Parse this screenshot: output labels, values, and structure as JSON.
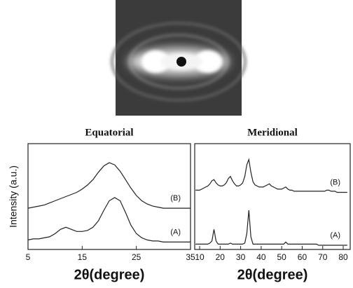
{
  "chart_data": [
    {
      "type": "line",
      "title": "Equatorial",
      "xlabel": "2θ(degree)",
      "ylabel": "Intensity (a.u.)",
      "xlim": [
        5,
        35
      ],
      "xticks": [
        5,
        15,
        25,
        35
      ],
      "ylim": [
        0,
        10
      ],
      "color": "#222",
      "x": [
        5,
        6,
        7,
        8,
        9,
        10,
        11,
        12,
        13,
        14,
        15,
        16,
        17,
        18,
        19,
        20,
        21,
        22,
        23,
        24,
        25,
        26,
        27,
        28,
        29,
        30,
        31,
        32,
        33,
        34,
        35
      ],
      "series": [
        {
          "name": "(B)",
          "values": [
            3.9,
            4.0,
            4.1,
            4.2,
            4.4,
            4.6,
            4.8,
            5.0,
            5.2,
            5.4,
            5.7,
            6.1,
            6.6,
            7.3,
            7.9,
            8.2,
            8.0,
            7.4,
            6.6,
            5.8,
            5.1,
            4.6,
            4.3,
            4.1,
            4.0,
            3.9,
            3.9,
            3.9,
            3.9,
            3.9,
            3.9
          ]
        },
        {
          "name": "(A)",
          "values": [
            0.9,
            1.0,
            1.0,
            1.1,
            1.2,
            1.5,
            1.9,
            2.1,
            1.9,
            1.7,
            1.7,
            1.8,
            2.1,
            2.7,
            3.7,
            4.6,
            4.9,
            4.6,
            3.5,
            2.3,
            1.5,
            1.1,
            0.9,
            0.8,
            0.8,
            0.7,
            0.7,
            0.7,
            0.7,
            0.7,
            0.7
          ]
        }
      ]
    },
    {
      "type": "line",
      "title": "Meridional",
      "xlabel": "2θ(degree)",
      "xlim": [
        7.6,
        83.4
      ],
      "xticks": [
        10,
        20,
        30,
        40,
        50,
        60,
        70,
        80
      ],
      "ylim": [
        0,
        10
      ],
      "color": "#222",
      "x": [
        8,
        9,
        10,
        11,
        12,
        13,
        14,
        15,
        16,
        17,
        18,
        19,
        20,
        21,
        22,
        23,
        24,
        25,
        26,
        27,
        28,
        29,
        30,
        31,
        32,
        33,
        34,
        35,
        36,
        37,
        38,
        39,
        40,
        41,
        42,
        43,
        44,
        45,
        46,
        47,
        48,
        49,
        50,
        51,
        52,
        53,
        54,
        55,
        56,
        57,
        58,
        59,
        60,
        61,
        62,
        63,
        64,
        65,
        66,
        67,
        68,
        69,
        70,
        71,
        72,
        73,
        74,
        75,
        76,
        77,
        78,
        79,
        80,
        81,
        82
      ],
      "series": [
        {
          "name": "(B)",
          "values": [
            5.6,
            5.6,
            5.6,
            5.7,
            5.8,
            5.9,
            6.0,
            6.2,
            6.5,
            6.6,
            6.3,
            6.1,
            6.0,
            6.0,
            6.1,
            6.3,
            6.7,
            6.9,
            6.5,
            6.2,
            6.0,
            6.0,
            6.1,
            6.3,
            6.9,
            8.0,
            8.5,
            7.3,
            6.4,
            6.1,
            6.0,
            5.9,
            5.9,
            5.9,
            6.0,
            6.1,
            6.2,
            6.0,
            5.9,
            5.8,
            5.7,
            5.7,
            5.7,
            5.8,
            5.9,
            5.7,
            5.6,
            5.6,
            5.5,
            5.5,
            5.5,
            5.5,
            5.5,
            5.5,
            5.5,
            5.5,
            5.5,
            5.5,
            5.5,
            5.5,
            5.5,
            5.5,
            5.5,
            5.5,
            5.6,
            5.6,
            5.5,
            5.5,
            5.5,
            5.4,
            5.4,
            5.4,
            5.4,
            5.4,
            5.4
          ]
        },
        {
          "name": "(A)",
          "values": [
            0.5,
            0.5,
            0.5,
            0.5,
            0.5,
            0.5,
            0.5,
            0.6,
            0.8,
            1.9,
            0.8,
            0.5,
            0.5,
            0.5,
            0.5,
            0.5,
            0.5,
            0.6,
            0.5,
            0.5,
            0.5,
            0.5,
            0.5,
            0.5,
            0.6,
            1.5,
            3.7,
            1.2,
            0.5,
            0.5,
            0.5,
            0.5,
            0.5,
            0.5,
            0.5,
            0.5,
            0.5,
            0.5,
            0.5,
            0.5,
            0.5,
            0.5,
            0.5,
            0.5,
            0.7,
            0.5,
            0.5,
            0.5,
            0.5,
            0.5,
            0.5,
            0.5,
            0.5,
            0.5,
            0.5,
            0.5,
            0.5,
            0.5,
            0.5,
            0.5,
            0.4,
            0.4,
            0.4,
            0.4,
            0.4,
            0.4,
            0.4,
            0.4,
            0.4,
            0.4,
            0.4,
            0.4,
            0.4,
            0.4,
            0.4
          ]
        }
      ]
    }
  ]
}
